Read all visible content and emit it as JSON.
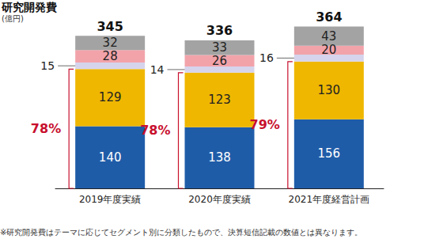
{
  "chart_data": {
    "type": "bar",
    "title": "研究開発費",
    "subtitle": "(億円)",
    "categories": [
      "2019年度実績",
      "2020年度実績",
      "2021年度経営計画"
    ],
    "series": [
      {
        "color": "#1f5ca8",
        "values": [
          140,
          138,
          156
        ]
      },
      {
        "color": "#efb700",
        "values": [
          129,
          123,
          130
        ]
      },
      {
        "color": "#d6d4ec",
        "values": [
          15,
          14,
          16
        ]
      },
      {
        "color": "#f2a3aa",
        "values": [
          28,
          26,
          20
        ]
      },
      {
        "color": "#a3a3a3",
        "values": [
          32,
          33,
          43
        ]
      }
    ],
    "totals": [
      345,
      336,
      364
    ],
    "share_labels": [
      "78%",
      "78%",
      "79%"
    ],
    "note": "※研究開発費はテーマに応じてセグメント別に分類したもので、決算短信記載の数値とは異なります。",
    "stacked": true,
    "data_labels": true,
    "ylim": [
      0,
      400
    ],
    "tick_labels": "x",
    "grid": false
  }
}
